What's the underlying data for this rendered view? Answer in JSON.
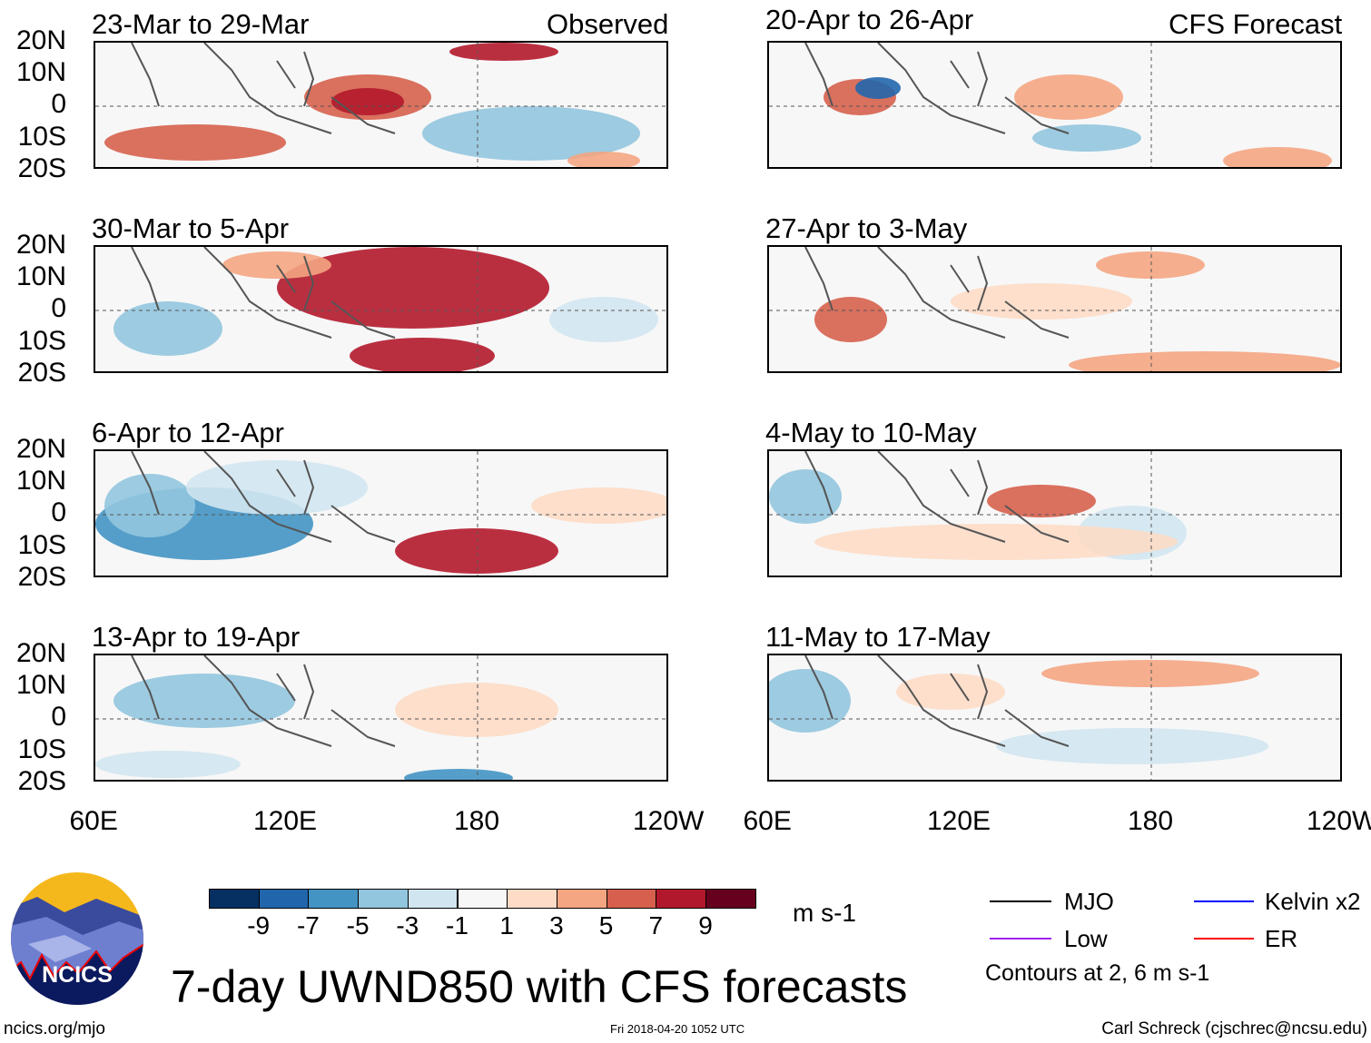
{
  "panels": [
    {
      "title": "23-Mar to 29-Mar",
      "label": "Observed"
    },
    {
      "title": "20-Apr to 26-Apr",
      "label": "CFS Forecast"
    },
    {
      "title": "30-Mar to 5-Apr",
      "label": ""
    },
    {
      "title": "27-Apr to 3-May",
      "label": ""
    },
    {
      "title": "6-Apr to 12-Apr",
      "label": ""
    },
    {
      "title": "4-May to 10-May",
      "label": ""
    },
    {
      "title": "13-Apr to 19-Apr",
      "label": ""
    },
    {
      "title": "11-May to 17-May",
      "label": ""
    }
  ],
  "lat_labels": [
    "20N",
    "10N",
    "0",
    "10S",
    "20S"
  ],
  "lon_labels": [
    "60E",
    "120E",
    "180",
    "120W"
  ],
  "colorbar": {
    "colors": [
      "#053061",
      "#2166ac",
      "#4393c3",
      "#92c5de",
      "#d1e5f0",
      "#f7f7f7",
      "#fddbc7",
      "#f4a582",
      "#d6604d",
      "#b2182b",
      "#67001f"
    ],
    "labels": [
      "-9",
      "-7",
      "-5",
      "-3",
      "-1",
      "1",
      "3",
      "5",
      "7",
      "9"
    ],
    "units": "m s-1"
  },
  "legend": {
    "items": [
      {
        "label": "MJO",
        "color": "#000000"
      },
      {
        "label": "Kelvin x2",
        "color": "#0000ff"
      },
      {
        "label": "Low",
        "color": "#a020f0"
      },
      {
        "label": "ER",
        "color": "#ff0000"
      }
    ],
    "contours": "Contours at 2, 6 m s-1"
  },
  "title": "7-day UWND850 with CFS forecasts",
  "logo": "NCICS",
  "footer": {
    "left": "ncics.org/mjo",
    "center": "Fri 2018-04-20 1052 UTC",
    "right": "Carl Schreck (cjschrec@ncsu.edu)"
  }
}
